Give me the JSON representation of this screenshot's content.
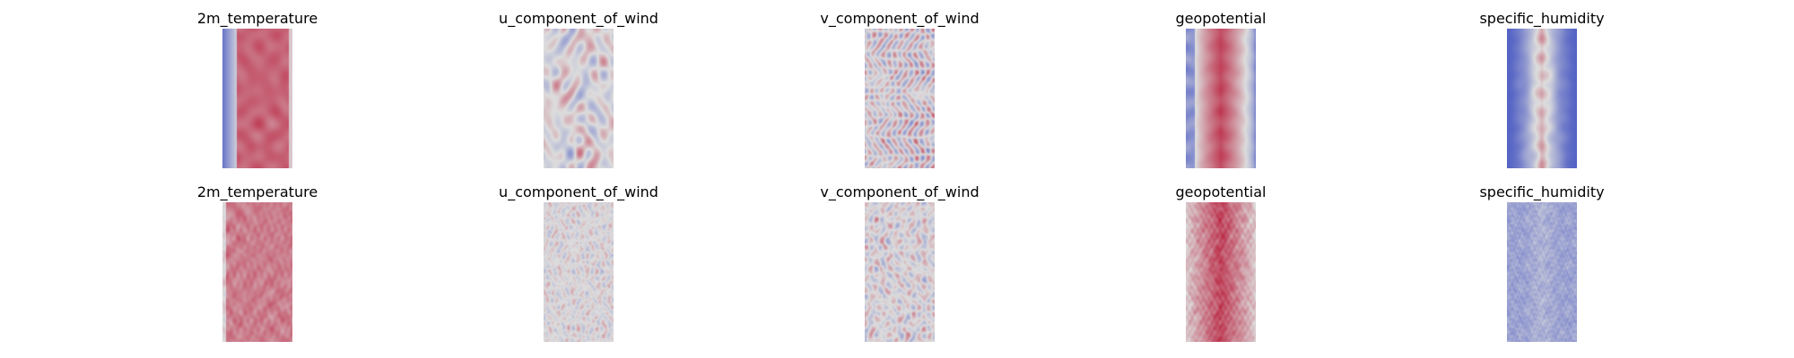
{
  "chart_data": {
    "type": "heatmap",
    "colormap": "coolwarm",
    "colors": {
      "cold": "#3b4cc0",
      "neutral": "#dddddd",
      "warm": "#b40426"
    },
    "rows": [
      {
        "panels": [
          {
            "title": "2m_temperature",
            "pattern": "temperature"
          },
          {
            "title": "u_component_of_wind",
            "pattern": "wind_u"
          },
          {
            "title": "v_component_of_wind",
            "pattern": "wind_v"
          },
          {
            "title": "geopotential",
            "pattern": "geopotential"
          },
          {
            "title": "specific_humidity",
            "pattern": "humidity"
          }
        ]
      },
      {
        "panels": [
          {
            "title": "2m_temperature",
            "pattern": "temperature_noisy"
          },
          {
            "title": "u_component_of_wind",
            "pattern": "wind_u_noisy"
          },
          {
            "title": "v_component_of_wind",
            "pattern": "wind_v_noisy"
          },
          {
            "title": "geopotential",
            "pattern": "geopotential_noisy"
          },
          {
            "title": "specific_humidity",
            "pattern": "humidity_noisy"
          }
        ]
      }
    ]
  }
}
